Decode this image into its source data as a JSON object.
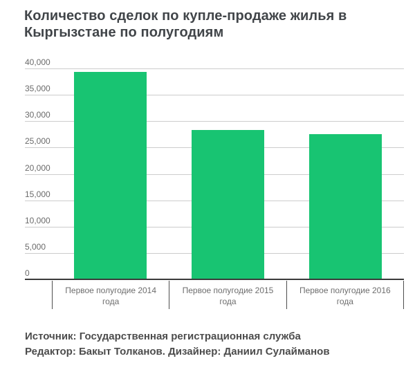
{
  "title": "Количество сделок по купле-продаже жилья в Кыргызстане по полугодиям",
  "footer": {
    "source_line": "Источник: Государственная регистрационная служба",
    "credits_line": "Редактор: Бакыт Толканов. Дизайнер: Даниил Сулайманов"
  },
  "colors": {
    "bar": "#18c472",
    "grid": "#cccccc",
    "axis": "#3a3a3a",
    "tick_label": "#6a6a6a",
    "category_label": "#6d6d6d",
    "separator": "#4d4d4d",
    "title_text": "#414549",
    "footer_text": "#4c4c4c",
    "background": "#ffffff"
  },
  "chart_data": {
    "type": "bar",
    "title": "Количество сделок по купле-продаже жилья в Кыргызстане по полугодиям",
    "categories": [
      "Первое полугодие 2014 года",
      "Первое полугодие 2015 года",
      "Первое полугодие 2016 года"
    ],
    "values": [
      39500,
      28400,
      27700
    ],
    "xlabel": "",
    "ylabel": "",
    "ylim": [
      0,
      40000
    ],
    "yticks": [
      {
        "value": 0,
        "label": "0"
      },
      {
        "value": 5000,
        "label": "5,000"
      },
      {
        "value": 10000,
        "label": "10,000"
      },
      {
        "value": 15000,
        "label": "15,000"
      },
      {
        "value": 20000,
        "label": "20,000"
      },
      {
        "value": 25000,
        "label": "25,000"
      },
      {
        "value": 30000,
        "label": "30,000"
      },
      {
        "value": 35000,
        "label": "35,000"
      },
      {
        "value": 40000,
        "label": "40,000"
      }
    ],
    "grid": true,
    "legend": "none",
    "bar_color": "#18c472"
  }
}
